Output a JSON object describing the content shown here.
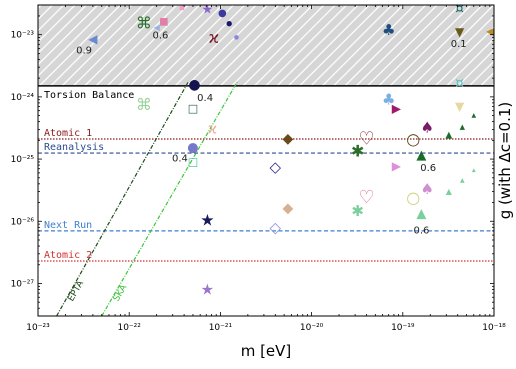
{
  "chart_data": {
    "type": "scatter",
    "xlabel": "m [eV]",
    "ylabel": "g (with Δc=0.1)",
    "xscale": "log",
    "yscale": "log",
    "xlim": [
      1e-23,
      1e-18
    ],
    "ylim": [
      3e-28,
      3e-23
    ],
    "grid": false,
    "x_ticks": [
      {
        "value": 1e-23,
        "label": "10⁻²³"
      },
      {
        "value": 1e-22,
        "label": "10⁻²²"
      },
      {
        "value": 1e-21,
        "label": "10⁻²¹"
      },
      {
        "value": 1e-20,
        "label": "10⁻²⁰"
      },
      {
        "value": 1e-19,
        "label": "10⁻¹⁹"
      },
      {
        "value": 1e-18,
        "label": "10⁻¹⁸"
      }
    ],
    "y_ticks": [
      {
        "value": 1e-27,
        "label": "10⁻²⁷"
      },
      {
        "value": 1e-26,
        "label": "10⁻²⁶"
      },
      {
        "value": 1e-25,
        "label": "10⁻²⁵"
      },
      {
        "value": 1e-24,
        "label": "10⁻²⁴"
      },
      {
        "value": 1e-23,
        "label": "10⁻²³"
      }
    ],
    "excluded_region": {
      "label": "Torsion Balance",
      "y_min": 1.5e-24,
      "color": "#d4d4d4"
    },
    "reference_lines": [
      {
        "label": "Atomic 1",
        "y": 2.1e-25,
        "color": "#8b1a1a",
        "style": "dotted"
      },
      {
        "label": "Reanalysis",
        "y": 1.25e-25,
        "color": "#2a4d8f",
        "style": "dashed"
      },
      {
        "label": "Next Run",
        "y": 7e-27,
        "color": "#3f7fd0",
        "style": "dashed"
      },
      {
        "label": "Atomic 2",
        "y": 2.3e-27,
        "color": "#d03030",
        "style": "dotted"
      }
    ],
    "bounds": [
      {
        "label": "EPTA",
        "color": "#1a4d1a",
        "from": [
          1.6e-23,
          3e-28
        ],
        "to": [
          4.5e-22,
          1.8e-24
        ]
      },
      {
        "label": "SKA",
        "color": "#3cc43c",
        "from": [
          5e-23,
          3e-28
        ],
        "to": [
          1.55e-21,
          1.8e-24
        ]
      }
    ],
    "points": [
      {
        "x": 1.45e-22,
        "y": 1.55e-23,
        "glyph": "⌘",
        "color": "#2a6e2a",
        "size": 16
      },
      {
        "x": 1.45e-22,
        "y": 7.5e-25,
        "glyph": "⌘",
        "color": "#9ad49a",
        "size": 16
      },
      {
        "x": 4e-23,
        "y": 8.5e-24,
        "glyph": "◀",
        "color": "#6a8ad0",
        "size": 12
      },
      {
        "x": 2e-22,
        "y": 1.3e-23,
        "glyph": "◀",
        "color": "#9ab0e0",
        "size": 8
      },
      {
        "x": 2.4e-22,
        "y": 1.6e-23,
        "glyph": "■",
        "color": "#e080a8",
        "size": 10
      },
      {
        "x": 3.8e-22,
        "y": 2.7e-23,
        "glyph": "■",
        "color": "#f0a0c8",
        "size": 6
      },
      {
        "x": 5.2e-22,
        "y": 1.55e-24,
        "glyph": "●",
        "color": "#141450",
        "size": 14
      },
      {
        "x": 5e-22,
        "y": 1.5e-25,
        "glyph": "●",
        "color": "#7777cc",
        "size": 13
      },
      {
        "x": 5e-22,
        "y": 6.5e-25,
        "glyph": "□",
        "color": "#1f5c50",
        "size": 11
      },
      {
        "x": 5e-22,
        "y": 9e-26,
        "glyph": "□",
        "color": "#40bfa0",
        "size": 11
      },
      {
        "x": 7.2e-22,
        "y": 2.5e-23,
        "glyph": "★",
        "color": "#8866cc",
        "size": 13
      },
      {
        "x": 7.2e-22,
        "y": 1.05e-26,
        "glyph": "★",
        "color": "#1a1a5a",
        "size": 16
      },
      {
        "x": 7.2e-22,
        "y": 8e-28,
        "glyph": "★",
        "color": "#9977cc",
        "size": 15
      },
      {
        "x": 8.5e-22,
        "y": 9e-24,
        "glyph": "ϰ",
        "color": "#7a1a2a",
        "size": 16
      },
      {
        "x": 8.2e-22,
        "y": 3e-25,
        "glyph": "ϰ",
        "color": "#e8b090",
        "size": 14
      },
      {
        "x": 1.05e-21,
        "y": 2.2e-23,
        "glyph": "●",
        "color": "#3a3a9e",
        "size": 10
      },
      {
        "x": 1.25e-21,
        "y": 1.5e-23,
        "glyph": "●",
        "color": "#1a1a6a",
        "size": 7
      },
      {
        "x": 1.5e-21,
        "y": 9e-24,
        "glyph": "●",
        "color": "#8888dd",
        "size": 6
      },
      {
        "x": 1.05e-21,
        "y": 3.7e-23,
        "glyph": "●",
        "color": "#101050",
        "size": 8
      },
      {
        "x": 4e-21,
        "y": 7.5e-26,
        "glyph": "◇",
        "color": "#2a2a8a",
        "size": 15
      },
      {
        "x": 4e-21,
        "y": 8e-27,
        "glyph": "◇",
        "color": "#9090dd",
        "size": 15
      },
      {
        "x": 5.5e-21,
        "y": 2.1e-25,
        "glyph": "◆",
        "color": "#6a4a1a",
        "size": 14
      },
      {
        "x": 5.5e-21,
        "y": 1.6e-26,
        "glyph": "◆",
        "color": "#d8b090",
        "size": 14
      },
      {
        "x": 3.2e-20,
        "y": 1.35e-25,
        "glyph": "✱",
        "color": "#2a6e2a",
        "size": 16
      },
      {
        "x": 3.2e-20,
        "y": 1.45e-26,
        "glyph": "✱",
        "color": "#7ad09a",
        "size": 15
      },
      {
        "x": 4e-20,
        "y": 2.1e-25,
        "glyph": "♡",
        "color": "#7a1a2a",
        "size": 18
      },
      {
        "x": 4e-20,
        "y": 2.4e-26,
        "glyph": "♡",
        "color": "#e87090",
        "size": 18
      },
      {
        "x": 7e-20,
        "y": 1.2e-23,
        "glyph": "♣",
        "color": "#1f4f7f",
        "size": 15
      },
      {
        "x": 7e-20,
        "y": 9e-25,
        "glyph": "♣",
        "color": "#7ab0e0",
        "size": 15
      },
      {
        "x": 8.5e-20,
        "y": 6.5e-25,
        "glyph": "▶",
        "color": "#a01a6a",
        "size": 12
      },
      {
        "x": 8.5e-20,
        "y": 7.8e-26,
        "glyph": "▶",
        "color": "#e090d8",
        "size": 12
      },
      {
        "x": 1.3e-19,
        "y": 2.1e-25,
        "glyph": "○",
        "color": "#5a4a1a",
        "size": 16
      },
      {
        "x": 1.3e-19,
        "y": 2.4e-26,
        "glyph": "○",
        "color": "#d0d080",
        "size": 16
      },
      {
        "x": 1.6e-19,
        "y": 1.15e-25,
        "glyph": "▲",
        "color": "#1a6e2a",
        "size": 13
      },
      {
        "x": 1.6e-19,
        "y": 1.3e-26,
        "glyph": "▲",
        "color": "#7ad09a",
        "size": 13
      },
      {
        "x": 1.85e-19,
        "y": 3.2e-25,
        "glyph": "♠",
        "color": "#7a1a6a",
        "size": 15
      },
      {
        "x": 1.85e-19,
        "y": 3.3e-26,
        "glyph": "♠",
        "color": "#d090d0",
        "size": 15
      },
      {
        "x": 4.2e-19,
        "y": 2.6e-23,
        "glyph": "¤",
        "color": "#1f6a6a",
        "size": 14
      },
      {
        "x": 4.2e-19,
        "y": 1.65e-24,
        "glyph": "¤",
        "color": "#60c0c0",
        "size": 14
      },
      {
        "x": 4.2e-19,
        "y": 1.1e-23,
        "glyph": "▼",
        "color": "#6a5a1a",
        "size": 12
      },
      {
        "x": 4.2e-19,
        "y": 7e-25,
        "glyph": "▼",
        "color": "#e8d8a0",
        "size": 12
      },
      {
        "x": 3.2e-19,
        "y": 2.4e-25,
        "glyph": "▲",
        "color": "#1a6e2a",
        "size": 9
      },
      {
        "x": 4.5e-19,
        "y": 3.3e-25,
        "glyph": "▲",
        "color": "#1a6e2a",
        "size": 7
      },
      {
        "x": 6e-19,
        "y": 5e-25,
        "glyph": "▲",
        "color": "#1a6e2a",
        "size": 6
      },
      {
        "x": 3.2e-19,
        "y": 3e-26,
        "glyph": "▲",
        "color": "#7ad09a",
        "size": 8
      },
      {
        "x": 4.5e-19,
        "y": 4.5e-26,
        "glyph": "▲",
        "color": "#7ad09a",
        "size": 6
      },
      {
        "x": 6e-19,
        "y": 6.5e-26,
        "glyph": "▲",
        "color": "#7ad09a",
        "size": 5
      },
      {
        "x": 9e-19,
        "y": 1.1e-23,
        "glyph": "◀",
        "color": "#b88a2a",
        "size": 10
      }
    ],
    "annotations": [
      {
        "text": "0.9",
        "x": 3.2e-23,
        "y": 5.5e-24
      },
      {
        "text": "0.6",
        "x": 2.2e-22,
        "y": 9.5e-24
      },
      {
        "text": "0.4",
        "x": 6.8e-22,
        "y": 9.5e-25
      },
      {
        "text": "0.4",
        "x": 3.6e-22,
        "y": 1e-25
      },
      {
        "text": "0.6",
        "x": 1.9e-19,
        "y": 7e-26
      },
      {
        "text": "0.6",
        "x": 1.6e-19,
        "y": 7e-27
      },
      {
        "text": "0.1",
        "x": 4.1e-19,
        "y": 7e-24
      }
    ]
  }
}
